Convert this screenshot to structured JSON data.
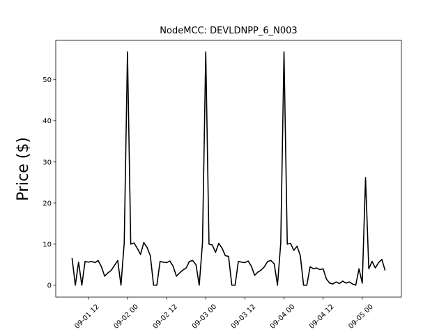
{
  "chart_data": {
    "type": "line",
    "title": "NodeMCC: DEVLDNPP_6_N003",
    "ylabel": "Price ($)",
    "x": [
      "09-01 07",
      "09-01 08",
      "09-01 09",
      "09-01 10",
      "09-01 11",
      "09-01 12",
      "09-01 13",
      "09-01 14",
      "09-01 15",
      "09-01 16",
      "09-01 17",
      "09-01 18",
      "09-01 19",
      "09-01 20",
      "09-01 21",
      "09-01 22",
      "09-01 23",
      "09-02 00",
      "09-02 01",
      "09-02 02",
      "09-02 03",
      "09-02 04",
      "09-02 05",
      "09-02 06",
      "09-02 07",
      "09-02 08",
      "09-02 09",
      "09-02 10",
      "09-02 11",
      "09-02 12",
      "09-02 13",
      "09-02 14",
      "09-02 15",
      "09-02 16",
      "09-02 17",
      "09-02 18",
      "09-02 19",
      "09-02 20",
      "09-02 21",
      "09-02 22",
      "09-02 23",
      "09-03 00",
      "09-03 01",
      "09-03 02",
      "09-03 03",
      "09-03 04",
      "09-03 05",
      "09-03 06",
      "09-03 07",
      "09-03 08",
      "09-03 09",
      "09-03 10",
      "09-03 11",
      "09-03 12",
      "09-03 13",
      "09-03 14",
      "09-03 15",
      "09-03 16",
      "09-03 17",
      "09-03 18",
      "09-03 19",
      "09-03 20",
      "09-03 21",
      "09-03 22",
      "09-03 23",
      "09-04 00",
      "09-04 01",
      "09-04 02",
      "09-04 03",
      "09-04 04",
      "09-04 05",
      "09-04 06",
      "09-04 07",
      "09-04 08",
      "09-04 09",
      "09-04 10",
      "09-04 11",
      "09-04 12",
      "09-04 13",
      "09-04 14",
      "09-04 15",
      "09-04 16",
      "09-04 17",
      "09-04 18",
      "09-04 19",
      "09-04 20",
      "09-04 21",
      "09-04 22",
      "09-04 23",
      "09-05 00",
      "09-05 01",
      "09-05 02",
      "09-05 03",
      "09-05 04",
      "09-05 05",
      "09-05 06",
      "09-05 07"
    ],
    "series": [
      {
        "name": "Price",
        "color": "#000000",
        "values": [
          6.6,
          0,
          5.6,
          0,
          5.8,
          5.6,
          5.8,
          5.5,
          6.0,
          4.5,
          2.2,
          3.0,
          3.6,
          4.8,
          6.0,
          0,
          10.3,
          56.8,
          10.0,
          10.3,
          9.0,
          7.5,
          10.4,
          9.2,
          7.2,
          0,
          0,
          5.8,
          5.6,
          5.5,
          5.9,
          4.6,
          2.2,
          3.0,
          3.7,
          4.2,
          5.8,
          6.0,
          5.0,
          0,
          10.3,
          56.8,
          10.0,
          9.8,
          8.0,
          10.2,
          9.0,
          7.2,
          7.0,
          0,
          0,
          5.8,
          5.6,
          5.5,
          5.9,
          4.6,
          2.4,
          3.2,
          3.7,
          4.5,
          5.8,
          6.0,
          5.2,
          0,
          10.3,
          56.8,
          10.0,
          10.2,
          8.5,
          9.5,
          7.2,
          0,
          0,
          4.5,
          4.0,
          4.2,
          3.8,
          4.0,
          1.5,
          0.5,
          0.3,
          0.8,
          0.4,
          1.0,
          0.5,
          0.8,
          0.3,
          0,
          4.0,
          0.5,
          26.2,
          4.0,
          5.8,
          4.2,
          5.5,
          6.3,
          3.6
        ]
      }
    ],
    "xlim": [
      "09-01 02",
      "09-05 12"
    ],
    "xticks": [
      "09-01 12",
      "09-02 00",
      "09-02 12",
      "09-03 00",
      "09-03 12",
      "09-04 00",
      "09-04 12",
      "09-05 00"
    ],
    "ylim": [
      -2.9,
      59.6
    ],
    "yticks": [
      0,
      10,
      20,
      30,
      40,
      50
    ],
    "grid": false
  }
}
